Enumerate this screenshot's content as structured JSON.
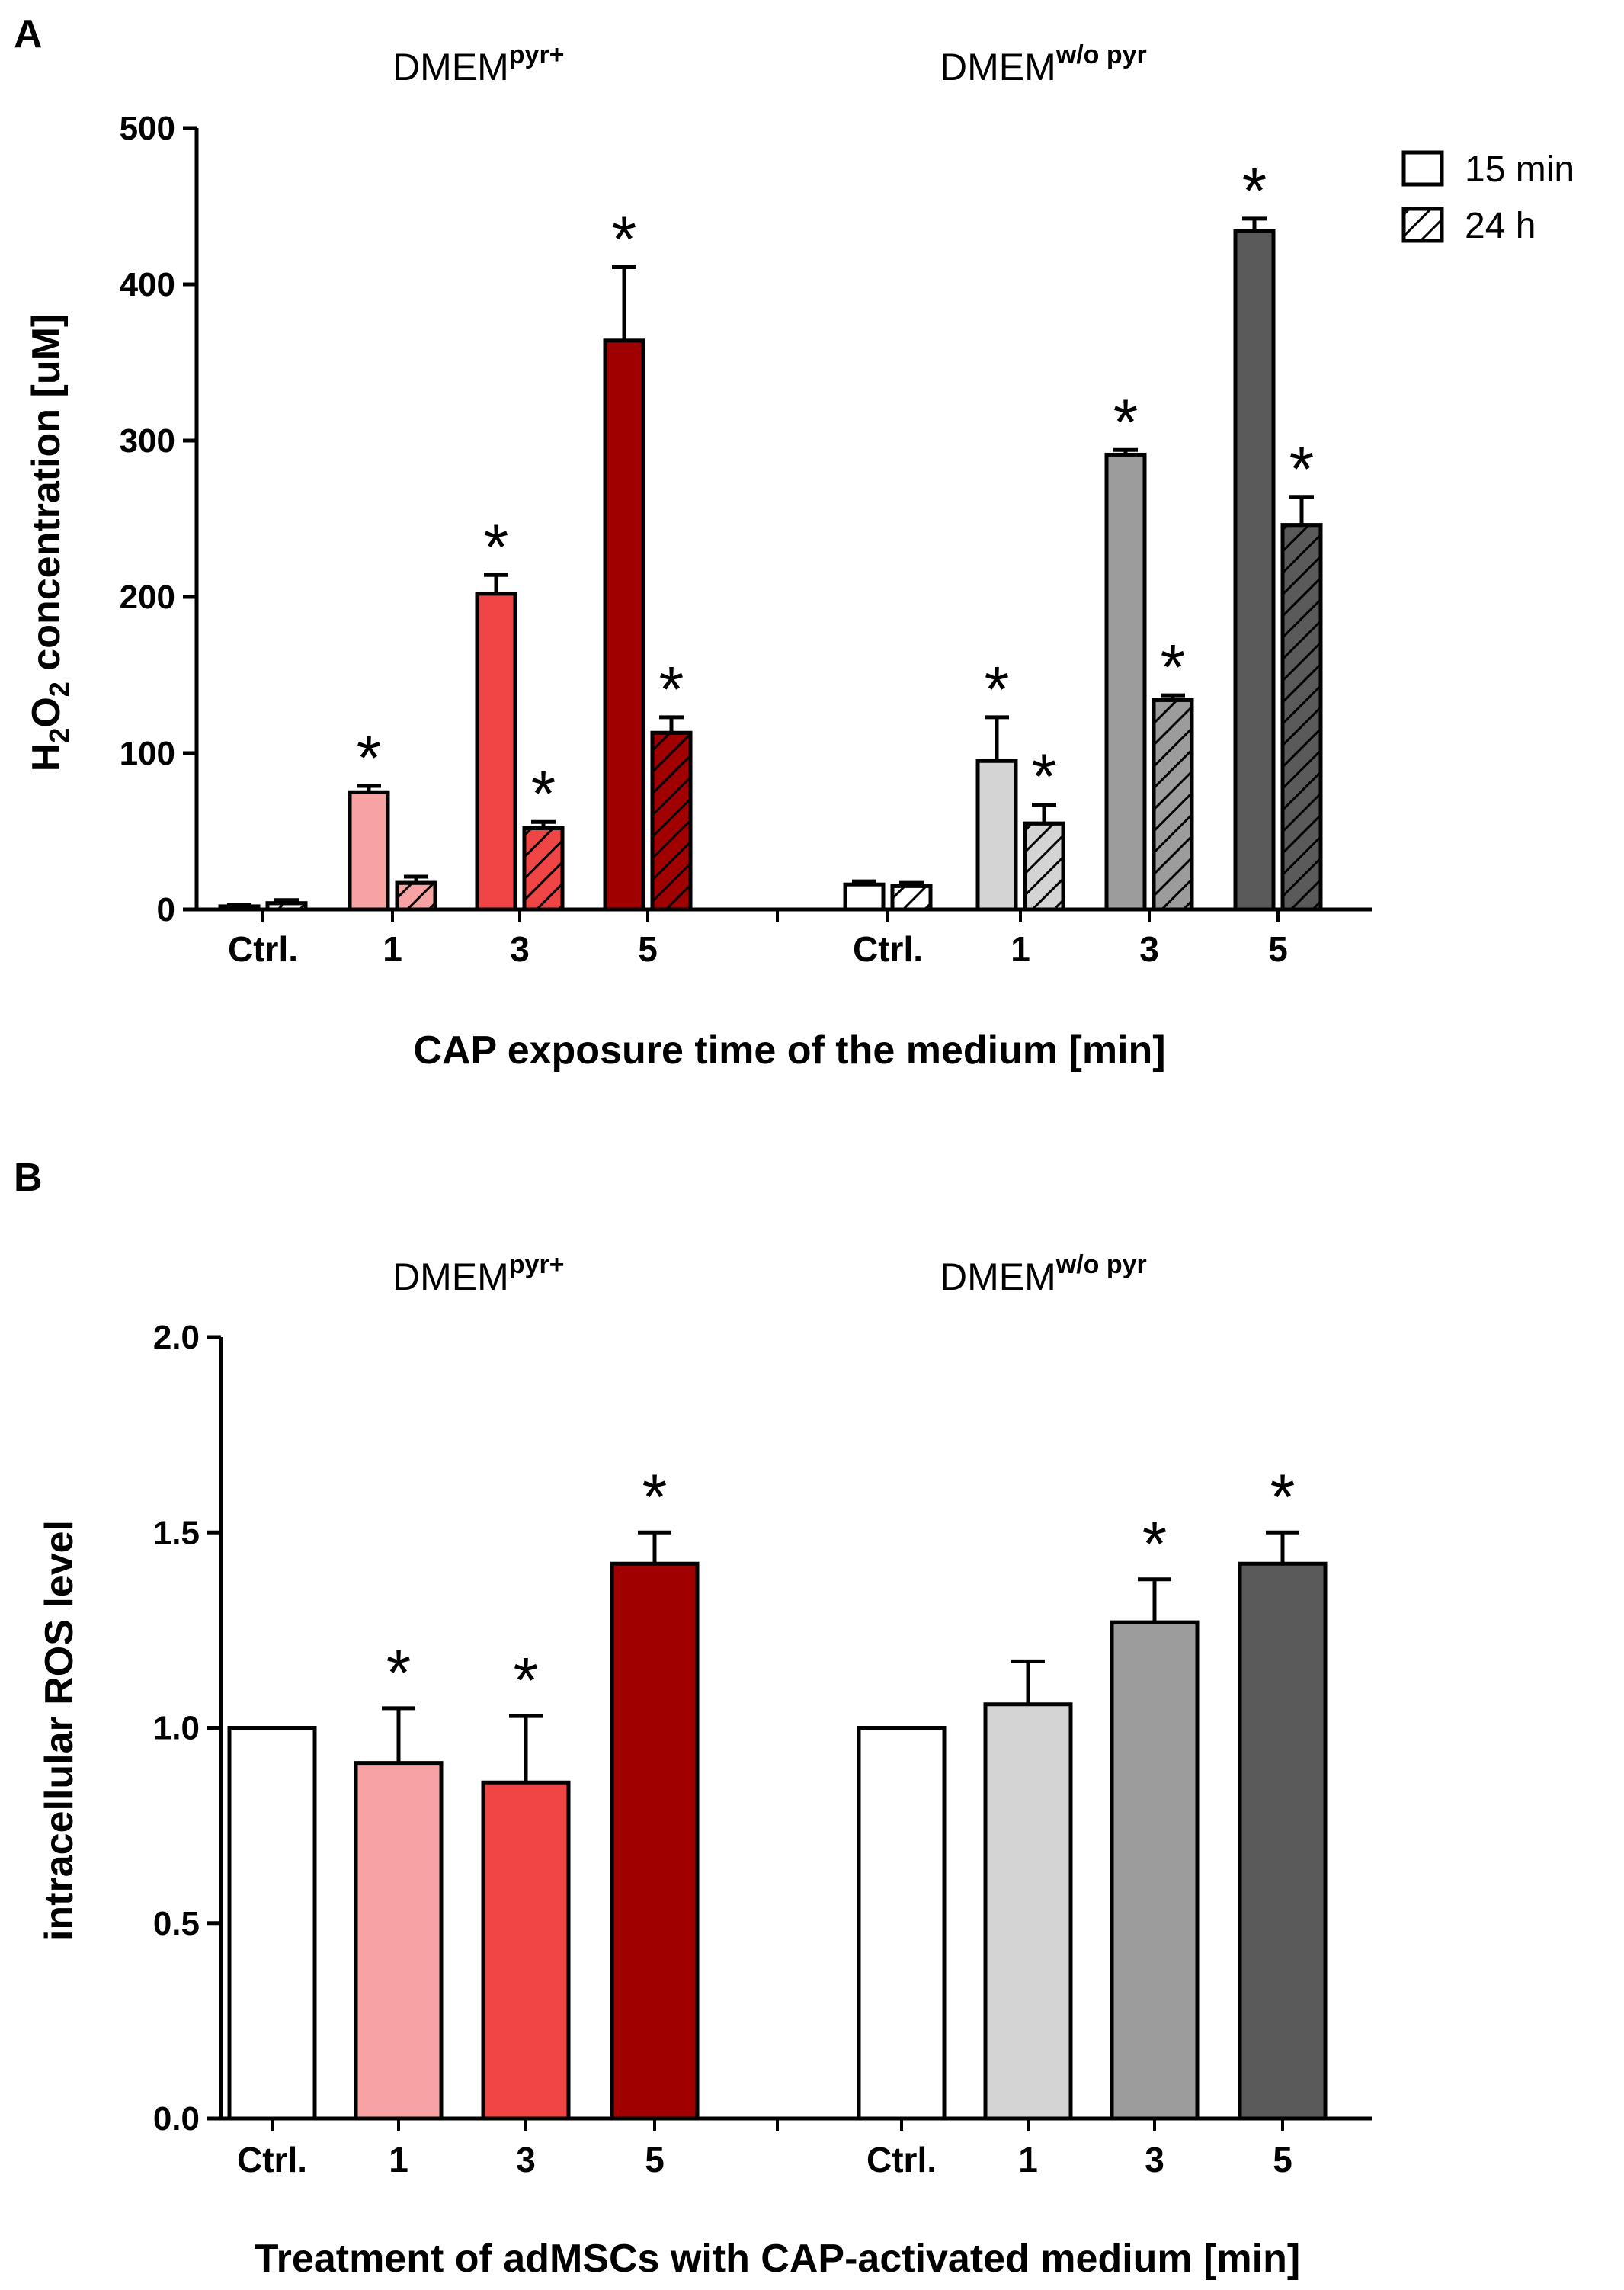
{
  "colors": {
    "pyr_ctrl": "#ffffff",
    "pyr_1": "#f7a3a3",
    "pyr_3": "#f04545",
    "pyr_5": "#a00000",
    "wo_ctrl": "#ffffff",
    "wo_1": "#d4d4d4",
    "wo_3": "#9c9c9c",
    "wo_5": "#5a5a5a"
  },
  "chart_data": [
    {
      "panel": "A",
      "type": "bar",
      "xlabel": "CAP exposure time of the medium [min]",
      "ylabel": "H2O2 concentration [uM]",
      "ylabel_parts": {
        "h": "H",
        "sub1": "2",
        "o": "O",
        "sub2": "2",
        "rest": " concentration [uM]"
      },
      "ylim": [
        0,
        500
      ],
      "yticks": [
        "0",
        "100",
        "200",
        "300",
        "400",
        "500"
      ],
      "legend": {
        "position": "top-right",
        "items": [
          {
            "label": "15 min",
            "pattern": "solid"
          },
          {
            "label": "24 h",
            "pattern": "hatched"
          }
        ]
      },
      "groups": [
        {
          "name": "DMEMpyr+",
          "title_main": "DMEM",
          "title_sup": "pyr+",
          "categories": [
            "Ctrl.",
            "1",
            "3",
            "5"
          ],
          "series": [
            {
              "name": "15 min",
              "values": [
                2,
                75,
                202,
                364
              ],
              "errors": [
                1,
                4,
                12,
                47
              ],
              "significant": [
                false,
                true,
                true,
                true
              ]
            },
            {
              "name": "24 h",
              "values": [
                4,
                17,
                52,
                113
              ],
              "errors": [
                2,
                4,
                4,
                10
              ],
              "significant": [
                false,
                false,
                true,
                true
              ]
            }
          ]
        },
        {
          "name": "DMEMw/o pyr",
          "title_main": "DMEM",
          "title_sup": "w/o pyr",
          "categories": [
            "Ctrl.",
            "1",
            "3",
            "5"
          ],
          "series": [
            {
              "name": "15 min",
              "values": [
                16,
                95,
                291,
                434
              ],
              "errors": [
                2,
                28,
                3,
                8
              ],
              "significant": [
                false,
                true,
                true,
                true
              ]
            },
            {
              "name": "24 h",
              "values": [
                15,
                55,
                134,
                246
              ],
              "errors": [
                2,
                12,
                3,
                18
              ],
              "significant": [
                false,
                true,
                true,
                true
              ]
            }
          ]
        }
      ]
    },
    {
      "panel": "B",
      "type": "bar",
      "xlabel": "Treatment of adMSCs with CAP-activated medium [min]",
      "ylabel": "intracellular ROS level",
      "ylim": [
        0,
        2.0
      ],
      "yticks": [
        "0.0",
        "0.5",
        "1.0",
        "1.5",
        "2.0"
      ],
      "groups": [
        {
          "name": "DMEMpyr+",
          "title_main": "DMEM",
          "title_sup": "pyr+",
          "categories": [
            "Ctrl.",
            "1",
            "3",
            "5"
          ],
          "series": [
            {
              "name": "ROS",
              "values": [
                1.0,
                0.91,
                0.86,
                1.42
              ],
              "errors": [
                0,
                0.14,
                0.17,
                0.08
              ],
              "significant": [
                false,
                true,
                true,
                true
              ]
            }
          ]
        },
        {
          "name": "DMEMw/o pyr",
          "title_main": "DMEM",
          "title_sup": "w/o pyr",
          "categories": [
            "Ctrl.",
            "1",
            "3",
            "5"
          ],
          "series": [
            {
              "name": "ROS",
              "values": [
                1.0,
                1.06,
                1.27,
                1.42
              ],
              "errors": [
                0,
                0.11,
                0.11,
                0.08
              ],
              "significant": [
                false,
                false,
                true,
                true
              ]
            }
          ]
        }
      ]
    }
  ],
  "star_symbol": "*"
}
